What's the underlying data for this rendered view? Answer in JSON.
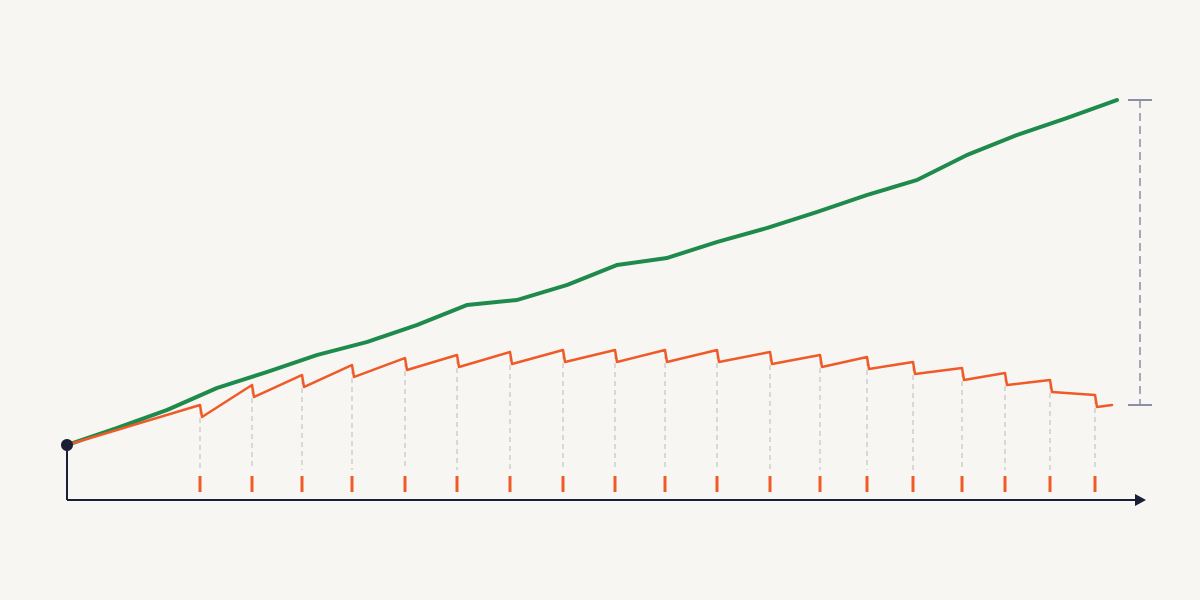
{
  "chart_data": {
    "type": "line",
    "xlim": [
      0,
      1080
    ],
    "ylim": [
      0,
      450
    ],
    "series": [
      {
        "color": "#1e8a4c",
        "x": [
          0,
          50,
          100,
          150,
          200,
          250,
          300,
          350,
          400,
          450,
          500,
          550,
          600,
          650,
          700,
          750,
          800,
          850,
          900,
          950,
          1000,
          1050
        ],
        "values": [
          55,
          72,
          90,
          112,
          128,
          145,
          158,
          175,
          195,
          200,
          215,
          235,
          242,
          258,
          272,
          288,
          305,
          320,
          345,
          365,
          382,
          400
        ]
      },
      {
        "color": "#f05a28",
        "x": [
          0,
          133,
          135,
          185,
          187,
          235,
          237,
          285,
          287,
          338,
          340,
          390,
          392,
          443,
          445,
          496,
          498,
          548,
          550,
          598,
          600,
          650,
          652,
          703,
          705,
          753,
          755,
          800,
          802,
          846,
          848,
          895,
          897,
          938,
          940,
          983,
          985,
          1028,
          1030,
          1045
        ],
        "values": [
          55,
          95,
          83,
          115,
          103,
          125,
          113,
          135,
          123,
          142,
          130,
          145,
          133,
          148,
          136,
          150,
          138,
          150,
          138,
          150,
          138,
          150,
          138,
          148,
          136,
          145,
          133,
          143,
          131,
          138,
          126,
          132,
          120,
          127,
          115,
          120,
          108,
          105,
          93,
          95
        ]
      }
    ],
    "events": [
      133,
      185,
      235,
      285,
      338,
      390,
      443,
      496,
      548,
      598,
      650,
      703,
      753,
      800,
      846,
      895,
      938,
      983,
      1028
    ],
    "event_color": "#f05a28"
  }
}
